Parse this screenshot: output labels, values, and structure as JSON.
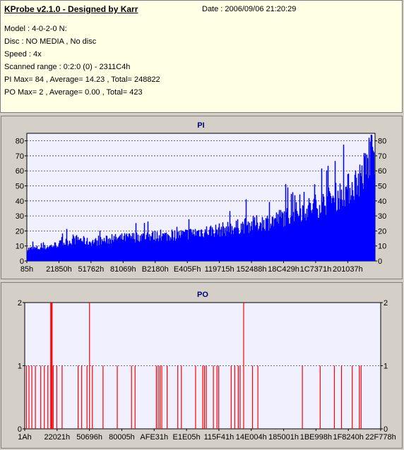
{
  "info": {
    "title": "KProbe v2.1.0 - Designed by Karr",
    "date": "Date : 2006/09/06 21:20:29",
    "model": "Model : 4-0-2-0 N:",
    "disc": "Disc : NO MEDIA , No disc",
    "speed": "Speed : 4x",
    "range": "Scanned range : 0:2:0 (0) - 2311C4h",
    "pi_summary": "PI Max= 84 , Average= 14.23 , Total= 248822",
    "po_summary": "PO Max= 2 , Average= 0.00 , Total= 423"
  },
  "colors": {
    "pi": "#0000ff",
    "po": "#ff0000",
    "plot_bg": "#f0f0ff",
    "grid": "#404040",
    "title": "#000080"
  },
  "chart_data": [
    {
      "type": "bar",
      "title": "PI",
      "ylim": [
        0,
        85
      ],
      "yticks": [
        0,
        10,
        20,
        30,
        40,
        50,
        60,
        70,
        80
      ],
      "xticks": [
        "85h",
        "21850h",
        "51762h",
        "81069h",
        "B2180h",
        "E405Fh",
        "119715h",
        "152488h",
        "18C429h",
        "1C7371h",
        "201037h"
      ],
      "grid": true,
      "max": 84,
      "envelope": [
        {
          "x": 0.0,
          "y": 8
        },
        {
          "x": 0.05,
          "y": 9
        },
        {
          "x": 0.1,
          "y": 12
        },
        {
          "x": 0.15,
          "y": 15
        },
        {
          "x": 0.17,
          "y": 13
        },
        {
          "x": 0.2,
          "y": 13
        },
        {
          "x": 0.25,
          "y": 15
        },
        {
          "x": 0.3,
          "y": 16
        },
        {
          "x": 0.35,
          "y": 17
        },
        {
          "x": 0.4,
          "y": 17
        },
        {
          "x": 0.45,
          "y": 18
        },
        {
          "x": 0.5,
          "y": 20
        },
        {
          "x": 0.55,
          "y": 21
        },
        {
          "x": 0.6,
          "y": 23
        },
        {
          "x": 0.65,
          "y": 25
        },
        {
          "x": 0.7,
          "y": 27
        },
        {
          "x": 0.75,
          "y": 31
        },
        {
          "x": 0.8,
          "y": 35
        },
        {
          "x": 0.85,
          "y": 39
        },
        {
          "x": 0.9,
          "y": 45
        },
        {
          "x": 0.93,
          "y": 50
        },
        {
          "x": 0.96,
          "y": 57
        },
        {
          "x": 0.98,
          "y": 66
        },
        {
          "x": 1.0,
          "y": 70
        }
      ]
    },
    {
      "type": "bar",
      "title": "PO",
      "ylim": [
        0,
        2
      ],
      "yticks": [
        0,
        1,
        2
      ],
      "xticks": [
        "1Ah",
        "22021h",
        "50696h",
        "80005h",
        "AFE31h",
        "E1E05h",
        "115F41h",
        "14E004h",
        "185001h",
        "1BE998h",
        "1F8240h",
        "22F778h"
      ],
      "grid": true,
      "max": 2,
      "spikes_2": [
        0.073,
        0.075,
        0.077,
        0.182,
        0.615
      ],
      "spikes_1": [
        0.005,
        0.012,
        0.02,
        0.03,
        0.045,
        0.055,
        0.065,
        0.08,
        0.09,
        0.105,
        0.15,
        0.16,
        0.175,
        0.19,
        0.22,
        0.26,
        0.3,
        0.31,
        0.37,
        0.375,
        0.38,
        0.385,
        0.4,
        0.43,
        0.44,
        0.48,
        0.5,
        0.505,
        0.51,
        0.53,
        0.54,
        0.545,
        0.58,
        0.59,
        0.6,
        0.605,
        0.64,
        0.655,
        0.78,
        0.83,
        0.87,
        0.89,
        0.92,
        0.94,
        0.945
      ]
    }
  ]
}
